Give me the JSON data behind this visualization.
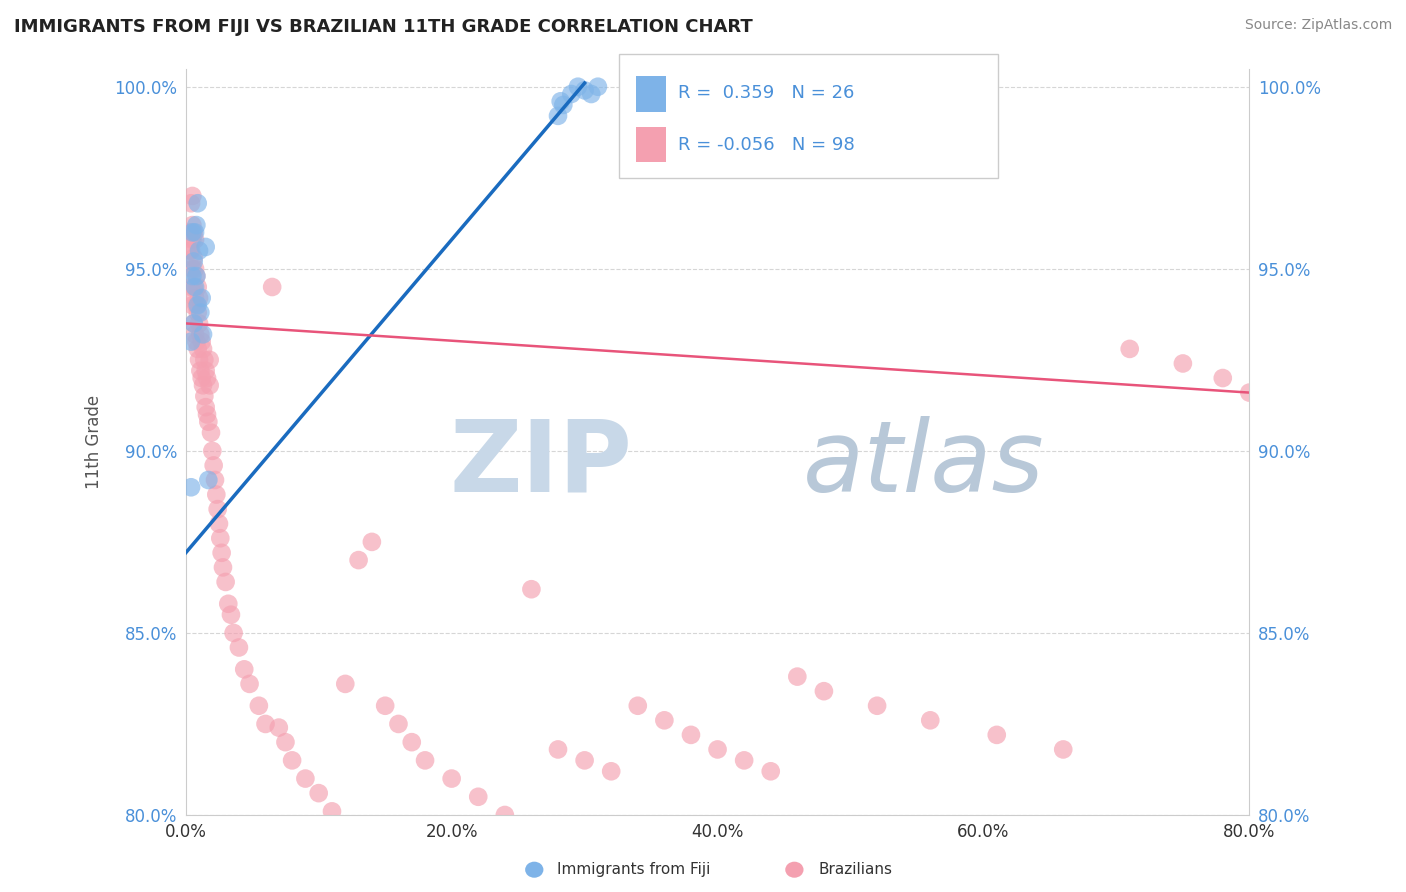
{
  "title": "IMMIGRANTS FROM FIJI VS BRAZILIAN 11TH GRADE CORRELATION CHART",
  "source_text": "Source: ZipAtlas.com",
  "ylabel": "11th Grade",
  "xmin": 0.0,
  "xmax": 0.8,
  "ymin": 0.8,
  "ymax": 1.005,
  "xtick_labels": [
    "0.0%",
    "20.0%",
    "40.0%",
    "60.0%",
    "80.0%"
  ],
  "xtick_vals": [
    0.0,
    0.2,
    0.4,
    0.6,
    0.8
  ],
  "ytick_labels": [
    "80.0%",
    "85.0%",
    "90.0%",
    "95.0%",
    "100.0%"
  ],
  "ytick_vals": [
    0.8,
    0.85,
    0.9,
    0.95,
    1.0
  ],
  "fiji_r": 0.359,
  "fiji_n": 26,
  "brazil_r": -0.056,
  "brazil_n": 98,
  "fiji_color": "#7eb3e8",
  "brazil_color": "#f4a0b0",
  "fiji_line_color": "#1a6bbf",
  "brazil_line_color": "#e8547a",
  "watermark_zip_color": "#c8d8e8",
  "watermark_atlas_color": "#b8c8d8",
  "legend_label_fiji": "Immigrants from Fiji",
  "legend_label_brazil": "Brazilians",
  "fiji_line_x0": 0.0,
  "fiji_line_y0": 0.872,
  "fiji_line_x1": 0.3,
  "fiji_line_y1": 1.001,
  "brazil_line_x0": 0.0,
  "brazil_line_y0": 0.935,
  "brazil_line_x1": 0.8,
  "brazil_line_y1": 0.916,
  "fiji_x": [
    0.004,
    0.004,
    0.005,
    0.005,
    0.006,
    0.006,
    0.007,
    0.007,
    0.008,
    0.008,
    0.009,
    0.009,
    0.01,
    0.011,
    0.012,
    0.013,
    0.015,
    0.017,
    0.28,
    0.282,
    0.284,
    0.29,
    0.295,
    0.3,
    0.305,
    0.31
  ],
  "fiji_y": [
    0.93,
    0.89,
    0.948,
    0.96,
    0.935,
    0.952,
    0.945,
    0.96,
    0.948,
    0.962,
    0.94,
    0.968,
    0.955,
    0.938,
    0.942,
    0.932,
    0.956,
    0.892,
    0.992,
    0.996,
    0.995,
    0.998,
    1.0,
    0.999,
    0.998,
    1.0
  ],
  "brazil_x": [
    0.003,
    0.003,
    0.004,
    0.004,
    0.004,
    0.005,
    0.005,
    0.005,
    0.005,
    0.005,
    0.006,
    0.006,
    0.006,
    0.006,
    0.007,
    0.007,
    0.007,
    0.007,
    0.008,
    0.008,
    0.008,
    0.009,
    0.009,
    0.009,
    0.01,
    0.01,
    0.01,
    0.011,
    0.011,
    0.012,
    0.012,
    0.013,
    0.013,
    0.014,
    0.014,
    0.015,
    0.015,
    0.016,
    0.016,
    0.017,
    0.018,
    0.018,
    0.019,
    0.02,
    0.021,
    0.022,
    0.023,
    0.024,
    0.025,
    0.026,
    0.027,
    0.028,
    0.03,
    0.032,
    0.034,
    0.036,
    0.04,
    0.044,
    0.048,
    0.055,
    0.06,
    0.065,
    0.07,
    0.075,
    0.08,
    0.09,
    0.1,
    0.11,
    0.12,
    0.13,
    0.14,
    0.15,
    0.16,
    0.17,
    0.18,
    0.2,
    0.22,
    0.24,
    0.26,
    0.28,
    0.3,
    0.32,
    0.34,
    0.36,
    0.38,
    0.4,
    0.42,
    0.44,
    0.46,
    0.48,
    0.52,
    0.56,
    0.61,
    0.66,
    0.71,
    0.75,
    0.78,
    0.8
  ],
  "brazil_y": [
    0.955,
    0.96,
    0.945,
    0.955,
    0.968,
    0.94,
    0.95,
    0.958,
    0.962,
    0.97,
    0.935,
    0.945,
    0.953,
    0.96,
    0.932,
    0.942,
    0.95,
    0.958,
    0.93,
    0.94,
    0.948,
    0.928,
    0.938,
    0.945,
    0.925,
    0.935,
    0.942,
    0.922,
    0.932,
    0.92,
    0.93,
    0.918,
    0.928,
    0.915,
    0.925,
    0.912,
    0.922,
    0.91,
    0.92,
    0.908,
    0.918,
    0.925,
    0.905,
    0.9,
    0.896,
    0.892,
    0.888,
    0.884,
    0.88,
    0.876,
    0.872,
    0.868,
    0.864,
    0.858,
    0.855,
    0.85,
    0.846,
    0.84,
    0.836,
    0.83,
    0.825,
    0.945,
    0.824,
    0.82,
    0.815,
    0.81,
    0.806,
    0.801,
    0.836,
    0.87,
    0.875,
    0.83,
    0.825,
    0.82,
    0.815,
    0.81,
    0.805,
    0.8,
    0.862,
    0.818,
    0.815,
    0.812,
    0.83,
    0.826,
    0.822,
    0.818,
    0.815,
    0.812,
    0.838,
    0.834,
    0.83,
    0.826,
    0.822,
    0.818,
    0.928,
    0.924,
    0.92,
    0.916
  ]
}
